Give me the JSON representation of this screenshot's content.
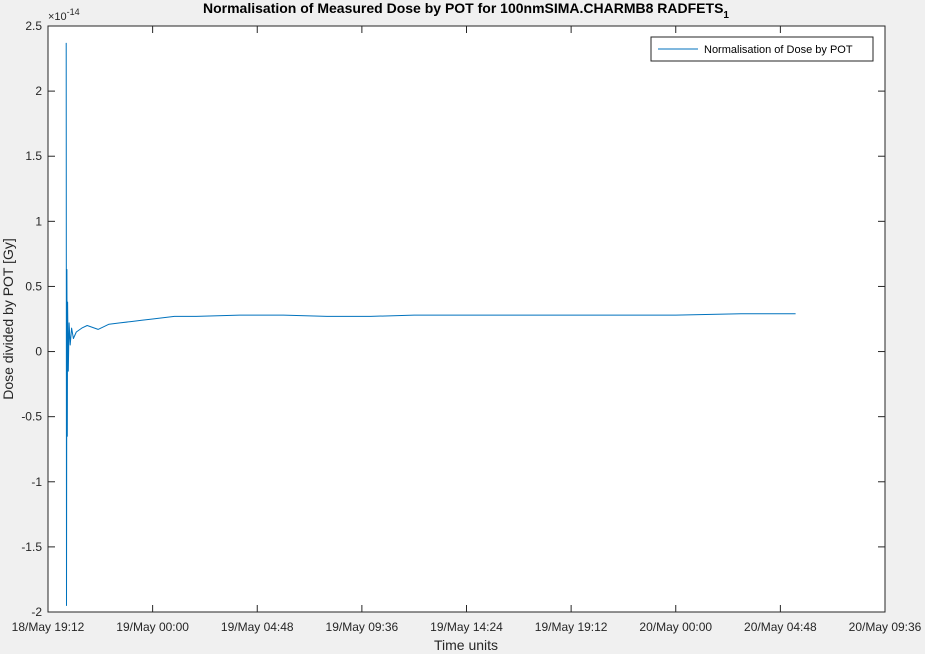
{
  "chart_data": {
    "type": "line",
    "title": "Normalisation of Measured Dose by POT for 100nmSIMA.CHARMB8 RADFETS",
    "title_subscript": "1",
    "xlabel": "Time units",
    "ylabel": "Dose divided by POT [Gy]",
    "y_exponent_label": "×10",
    "y_exponent_power": "-14",
    "xlim": [
      "18/May 19:12",
      "20/May 09:36"
    ],
    "ylim": [
      -2,
      2.5
    ],
    "x_tick_labels": [
      "18/May 19:12",
      "19/May 00:00",
      "19/May 04:48",
      "19/May 09:36",
      "19/May 14:24",
      "19/May 19:12",
      "20/May 00:00",
      "20/May 04:48",
      "20/May 09:36"
    ],
    "y_tick_labels": [
      "-2",
      "-1.5",
      "-1",
      "-0.5",
      "0",
      "0.5",
      "1",
      "1.5",
      "2",
      "2.5"
    ],
    "y_ticks": [
      -2,
      -1.5,
      -1,
      -0.5,
      0,
      0.5,
      1,
      1.5,
      2,
      2.5
    ],
    "grid": false,
    "legend_position": "top-right",
    "series": [
      {
        "name": "Normalisation of Dose by POT",
        "color": "#0072bd",
        "x": [
          "18/May 20:02",
          "18/May 20:03",
          "18/May 20:04",
          "18/May 20:05",
          "18/May 20:06",
          "18/May 20:08",
          "18/May 20:10",
          "18/May 20:13",
          "18/May 20:17",
          "18/May 20:22",
          "18/May 20:30",
          "18/May 20:45",
          "18/May 21:00",
          "18/May 21:30",
          "18/May 22:00",
          "18/May 22:30",
          "18/May 23:00",
          "18/May 23:30",
          "19/May 00:00",
          "19/May 01:00",
          "19/May 02:00",
          "19/May 04:00",
          "19/May 06:00",
          "19/May 08:00",
          "19/May 10:00",
          "19/May 12:00",
          "19/May 15:00",
          "19/May 18:00",
          "19/May 21:00",
          "20/May 00:00",
          "20/May 03:00",
          "20/May 05:30"
        ],
        "values": [
          2.37,
          -1.95,
          0.63,
          -0.65,
          0.38,
          -0.15,
          0.22,
          0.05,
          0.18,
          0.1,
          0.15,
          0.18,
          0.2,
          0.17,
          0.21,
          0.22,
          0.23,
          0.24,
          0.25,
          0.27,
          0.27,
          0.28,
          0.28,
          0.27,
          0.27,
          0.28,
          0.28,
          0.28,
          0.28,
          0.28,
          0.29,
          0.29
        ]
      }
    ]
  }
}
